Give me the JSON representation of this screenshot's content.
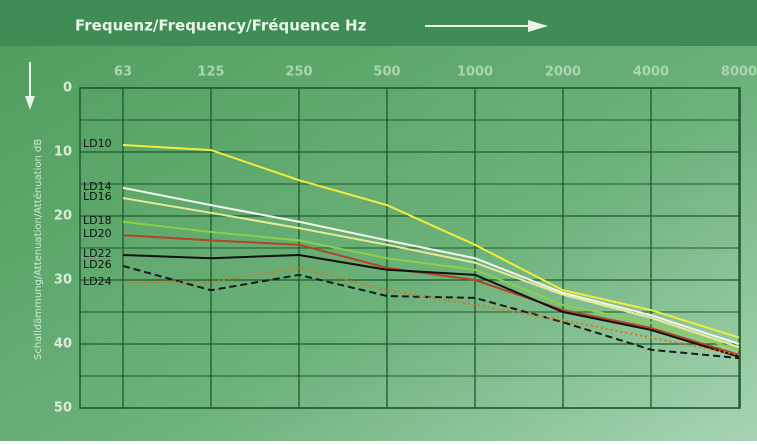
{
  "chart_data": {
    "type": "line",
    "title": "Frequenz/Frequency/Fréquence Hz",
    "y_label": "Schalldämmung/Attenuation/Atténuation dB",
    "categories": [
      "63",
      "125",
      "250",
      "500",
      "1000",
      "2000",
      "4000",
      "8000"
    ],
    "ylim": [
      0,
      50
    ],
    "y_reversed": true,
    "yticks": [
      0,
      10,
      20,
      30,
      40,
      50
    ],
    "y_minor_ticks": [
      5,
      15,
      25,
      35,
      45
    ],
    "grid": true,
    "series": [
      {
        "name": "LD10",
        "color": "#f2ec3a",
        "style": "solid",
        "values": [
          8.9,
          9.7,
          14.4,
          18.3,
          24.5,
          31.6,
          34.7,
          39
        ]
      },
      {
        "name": "LD14",
        "color": "#f4f4ee",
        "style": "solid",
        "values": [
          15.6,
          18.3,
          20.9,
          23.8,
          26.6,
          32,
          35.5,
          40
        ]
      },
      {
        "name": "LD16",
        "color": "#e6e89a",
        "style": "solid",
        "values": [
          17.2,
          19.5,
          21.9,
          24.5,
          27.3,
          32.3,
          35.9,
          40.5
        ]
      },
      {
        "name": "LD18",
        "color": "#8ccf4a",
        "style": "solid",
        "values": [
          20.9,
          22.5,
          23.8,
          26.6,
          28.4,
          33.9,
          36.7,
          40.9
        ]
      },
      {
        "name": "LD20",
        "color": "#b3461e",
        "style": "solid",
        "values": [
          23,
          23.8,
          24.5,
          28.1,
          30,
          34.7,
          37.5,
          41.7
        ]
      },
      {
        "name": "LD22",
        "color": "#111111",
        "style": "solid",
        "values": [
          26.1,
          26.6,
          26.1,
          28.4,
          29.2,
          35,
          37.8,
          42
        ]
      },
      {
        "name": "LD26",
        "color": "#1a1a1a",
        "style": "dashed",
        "values": [
          27.8,
          31.6,
          29.2,
          32.5,
          32.8,
          36.6,
          40.9,
          42.2
        ]
      },
      {
        "name": "LD24",
        "color": "#d8751f",
        "style": "dotted",
        "values": [
          30.5,
          30.3,
          28.1,
          31.6,
          33.9,
          36.3,
          39,
          41.7
        ]
      }
    ]
  }
}
